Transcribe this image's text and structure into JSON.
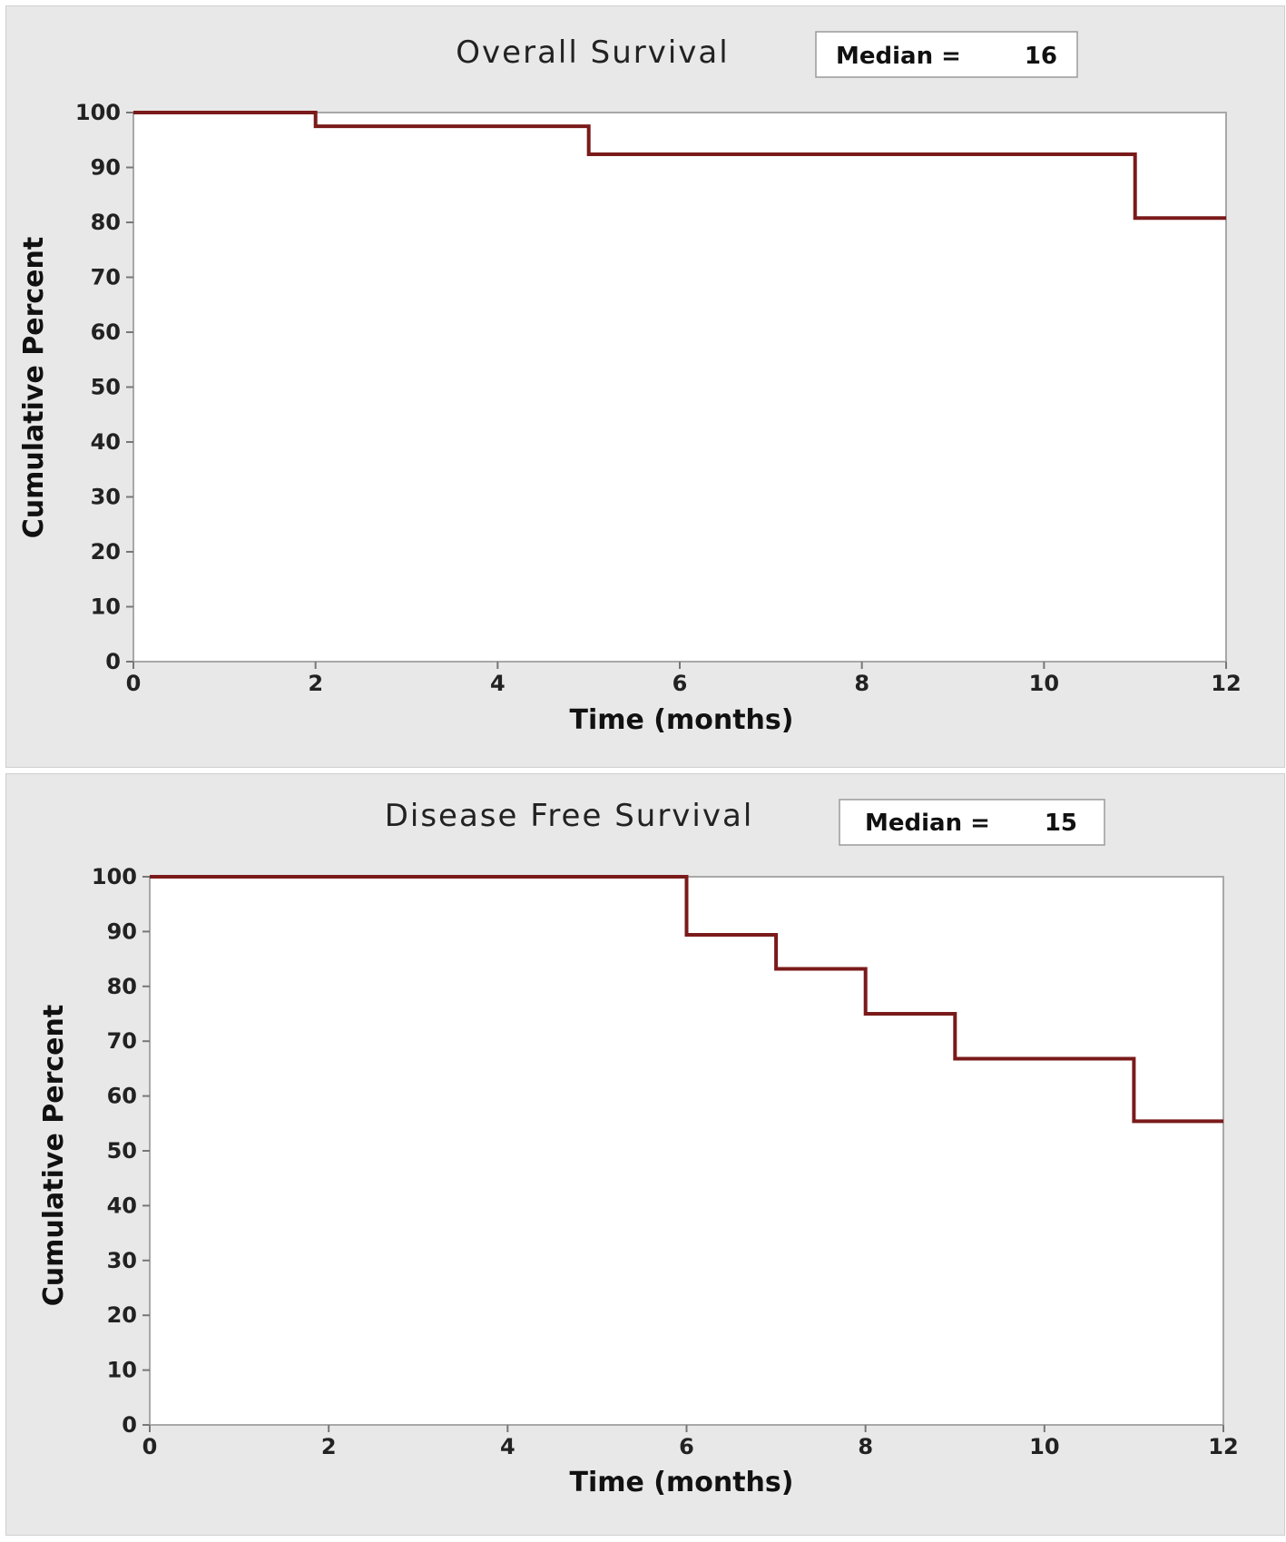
{
  "chart_data": [
    {
      "type": "line",
      "step": true,
      "title": "Overall Survival",
      "median_label": "Median  =",
      "median_value": "16",
      "xlabel": "Time (months)",
      "ylabel": "Cumulative Percent",
      "xlim": [
        0,
        12
      ],
      "ylim": [
        0,
        100
      ],
      "xticks": [
        0,
        2,
        4,
        6,
        8,
        10,
        12
      ],
      "yticks": [
        0,
        10,
        20,
        30,
        40,
        50,
        60,
        70,
        80,
        90,
        100
      ],
      "grid": false,
      "line_color": "#7a1a1a",
      "series": [
        {
          "x": [
            0,
            2,
            2,
            5,
            5,
            11,
            11,
            12
          ],
          "y": [
            100,
            100,
            97.5,
            97.5,
            92.4,
            92.4,
            80.8,
            80.8
          ]
        }
      ]
    },
    {
      "type": "line",
      "step": true,
      "title": "Disease Free Survival",
      "median_label": "Median  =",
      "median_value": "15",
      "xlabel": "Time (months)",
      "ylabel": "Cumulative Percent",
      "xlim": [
        0,
        12
      ],
      "ylim": [
        0,
        100
      ],
      "xticks": [
        0,
        2,
        4,
        6,
        8,
        10,
        12
      ],
      "yticks": [
        0,
        10,
        20,
        30,
        40,
        50,
        60,
        70,
        80,
        90,
        100
      ],
      "grid": false,
      "line_color": "#7a1a1a",
      "series": [
        {
          "x": [
            0,
            6,
            6,
            7,
            7,
            8,
            8,
            9,
            9,
            11,
            11,
            12
          ],
          "y": [
            100,
            100,
            89.4,
            89.4,
            83.2,
            83.2,
            75.0,
            75.0,
            66.8,
            66.8,
            55.4,
            55.4
          ]
        }
      ]
    }
  ]
}
